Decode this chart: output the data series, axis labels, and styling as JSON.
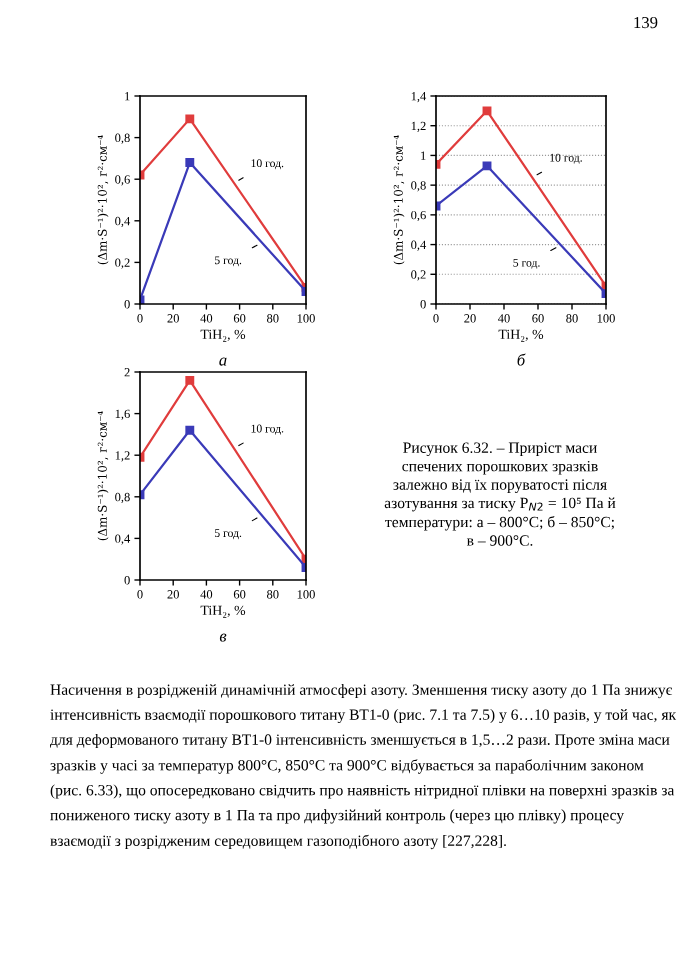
{
  "chart_data": [
    {
      "type": "line",
      "title": "а",
      "xlabel": "TiH₂, %",
      "ylabel": "(Δm·S⁻¹)²·10², г²·см⁻⁴",
      "x": [
        0,
        30,
        100
      ],
      "xlim": [
        0,
        100
      ],
      "xticks": [
        0,
        20,
        40,
        60,
        80,
        100
      ],
      "ylim": [
        0,
        1
      ],
      "yticks": [
        0,
        {
          "value": 0.2,
          "label": "0,2"
        },
        {
          "value": 0.4,
          "label": "0,4"
        },
        {
          "value": 0.6,
          "label": "0,6"
        },
        {
          "value": 0.8,
          "label": "0,8"
        },
        1
      ],
      "marker": "square",
      "grid": false,
      "legend": false,
      "series": [
        {
          "name": "10 год.",
          "color": "#e03c3c",
          "values": [
            0.62,
            0.89,
            0.08
          ]
        },
        {
          "name": "5 год.",
          "color": "#3a3ab8",
          "values": [
            0.02,
            0.68,
            0.06
          ]
        }
      ],
      "annotations": [
        "139"
      ]
    },
    {
      "type": "line",
      "title": "б",
      "xlabel": "TiH₂, %",
      "ylabel": "(Δm·S⁻¹)²·10², г²·см⁻⁴",
      "x": [
        0,
        30,
        100
      ],
      "xlim": [
        0,
        100
      ],
      "xticks": [
        0,
        20,
        40,
        60,
        80,
        100
      ],
      "ylim": [
        0,
        1.4
      ],
      "yticks": [
        0,
        {
          "value": 0.2,
          "label": "0,2"
        },
        {
          "value": 0.4,
          "label": "0,4"
        },
        {
          "value": 0.6,
          "label": "0,6"
        },
        {
          "value": 0.8,
          "label": "0,8"
        },
        1,
        {
          "value": 1.2,
          "label": "1,2"
        },
        {
          "value": 1.4,
          "label": "1,4"
        }
      ],
      "marker": "square",
      "grid": "y",
      "legend": false,
      "series": [
        {
          "name": "10 год.",
          "color": "#e03c3c",
          "values": [
            0.94,
            1.3,
            0.12
          ]
        },
        {
          "name": "5 год.",
          "color": "#3a3ab8",
          "values": [
            0.66,
            0.93,
            0.07
          ]
        }
      ]
    },
    {
      "type": "line",
      "title": "в",
      "xlabel": "TiH₂, %",
      "ylabel": "(Δm·S⁻¹)²·10², г²·см⁻⁴",
      "x": [
        0,
        30,
        100
      ],
      "xlim": [
        0,
        100
      ],
      "xticks": [
        0,
        20,
        40,
        60,
        80,
        100
      ],
      "ylim": [
        0,
        2
      ],
      "yticks": [
        0,
        {
          "value": 0.4,
          "label": "0,4"
        },
        {
          "value": 0.8,
          "label": "0,8"
        },
        {
          "value": 1.2,
          "label": "1,2"
        },
        {
          "value": 1.6,
          "label": "1,6"
        },
        2
      ],
      "marker": "square",
      "grid": false,
      "legend": false,
      "series": [
        {
          "name": "10 год.",
          "color": "#e03c3c",
          "values": [
            1.18,
            1.92,
            0.2
          ]
        },
        {
          "name": "5 год.",
          "color": "#3a3ab8",
          "values": [
            0.82,
            1.44,
            0.12
          ]
        }
      ],
      "annotations": [
        "Рисунок 6.32. – Приріст маси\nспечених порошкових зразків\nзалежно від їх поруватості після\nазотування за тиску P$_{N2}$ = 10⁵ Па й\nтемператури: а – 800°С; б – 850°С;\nв – 900°С.",
        "Насичення в розрідженій динамічній атмосфері азоту. Зменшення тиску азоту до 1 Па знижує інтенсивність взаємодії порошкового титану ВТ1-0 (рис. 7.1 та 7.5) у 6…10 разів, у той час, як для деформованого титану ВТ1-0 інтенсивність зменшується в 1,5…2 рази. Проте зміна маси зразків у часі за температур 800°С, 850°С та 900°С відбувається за параболічним законом (рис. 6.33), що опосередковано свідчить про наявність нітридної плівки на поверхні зразків за пониженого тиску азоту в 1 Па та про дифузійний контроль (через цю плівку) процесу взаємодії з розрідженим середовищем газоподібного азоту [227,228]."
      ]
    }
  ]
}
